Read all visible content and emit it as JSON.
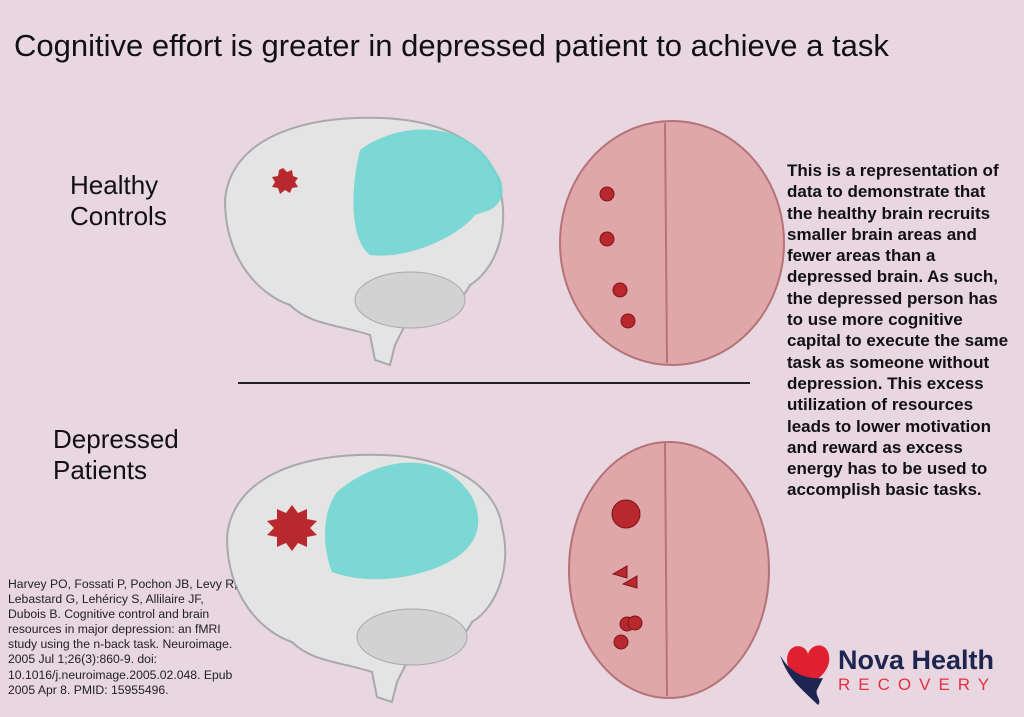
{
  "title": "Cognitive effort is greater in depressed patient to achieve a task",
  "groups": {
    "healthy": "Healthy Controls",
    "depressed": "Depressed Patients"
  },
  "description": "This is a representation of data to demonstrate that the healthy brain recruits smaller brain areas and fewer areas than a depressed brain. As such, the depressed person has to use more cognitive capital to execute the same task as someone without depression. This excess utilization of resources leads to lower motivation and reward as excess energy has to be used to accomplish basic tasks.",
  "citation": "Harvey PO, Fossati P, Pochon JB, Levy R, Lebastard G, Lehéricy S, Allilaire JF, Dubois B. Cognitive control and brain resources in major depression: an fMRI study using the n-back task. Neuroimage. 2005 Jul 1;26(3):860-9. doi: 10.1016/j.neuroimage.2005.02.048. Epub 2005 Apr 8. PMID: 15955496.",
  "logo": {
    "name": "Nova Health",
    "sub": "RECOVERY"
  },
  "colors": {
    "background": "#e8d6e1",
    "brain_side": "#e4e4e4",
    "brain_top": "#e0a7ab",
    "activation": "#6fd6d3",
    "lesion": "#b8282e",
    "logo_navy": "#1d2550",
    "logo_red": "#e53040"
  }
}
